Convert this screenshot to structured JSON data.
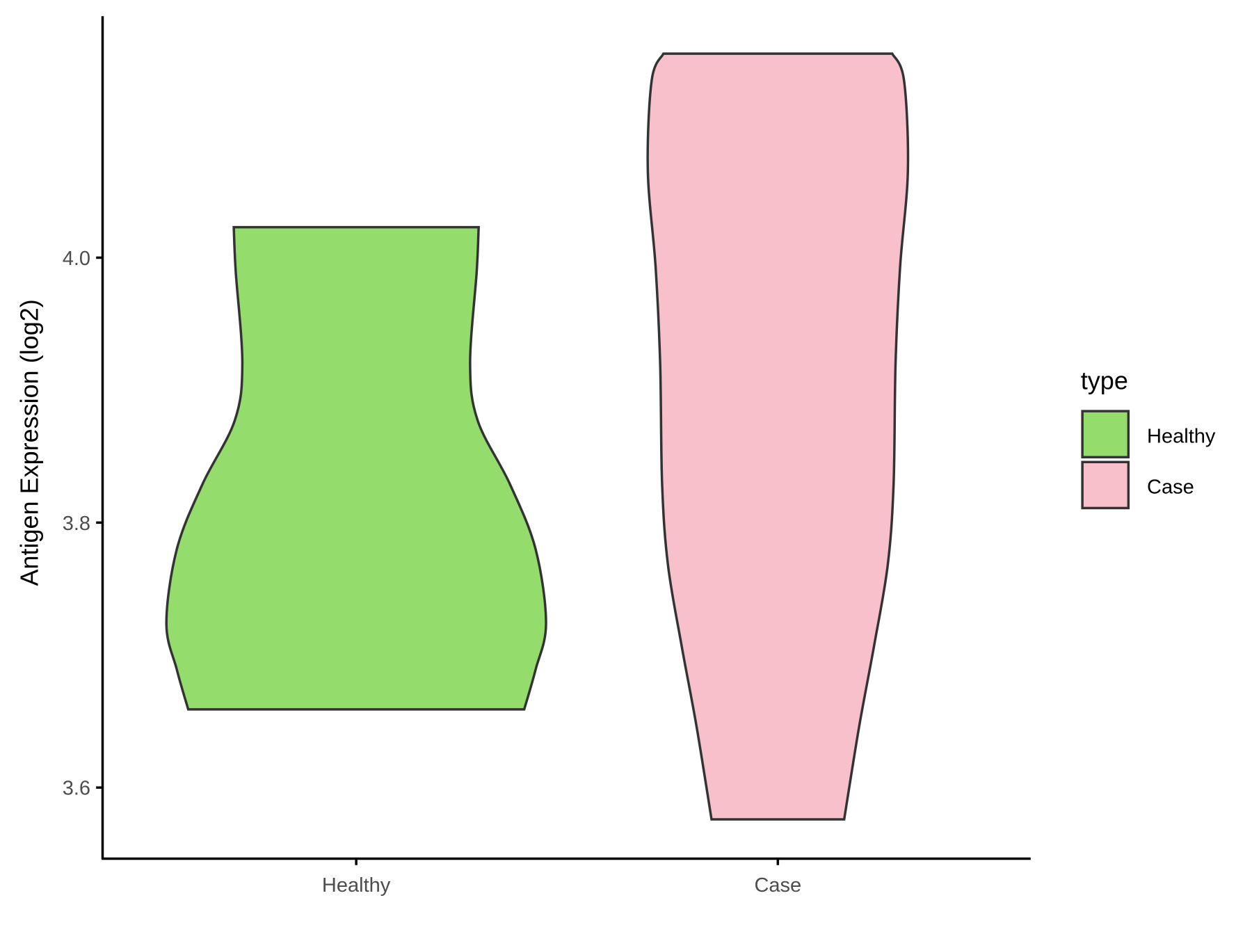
{
  "chart_data": {
    "type": "violin",
    "title": "",
    "xlabel": "",
    "ylabel": "Antigen Expression (log2)",
    "ylim": [
      3.545,
      4.185
    ],
    "yticks": [
      3.6,
      3.8,
      4.0
    ],
    "ytick_labels": [
      "3.6",
      "3.8",
      "4.0"
    ],
    "categories": [
      "Healthy",
      "Case"
    ],
    "grid": false,
    "legend": {
      "title": "type",
      "placement": "right",
      "entries": [
        "Healthy",
        "Case"
      ]
    },
    "series": [
      {
        "name": "Healthy",
        "color": "#94DC6B",
        "min": 3.659,
        "max": 4.023,
        "density_profile": [
          [
            3.659,
            0.885
          ],
          [
            3.689,
            0.945
          ],
          [
            3.724,
            1.0
          ],
          [
            3.78,
            0.945
          ],
          [
            3.829,
            0.81
          ],
          [
            3.877,
            0.64
          ],
          [
            3.92,
            0.6
          ],
          [
            3.99,
            0.635
          ],
          [
            4.023,
            0.645
          ]
        ]
      },
      {
        "name": "Case",
        "color": "#F7C0CB",
        "min": 3.576,
        "max": 4.154,
        "density_profile": [
          [
            3.576,
            0.51
          ],
          [
            3.646,
            0.625
          ],
          [
            3.707,
            0.74
          ],
          [
            3.768,
            0.845
          ],
          [
            3.829,
            0.89
          ],
          [
            3.92,
            0.905
          ],
          [
            3.993,
            0.94
          ],
          [
            4.066,
            1.0
          ],
          [
            4.134,
            0.97
          ],
          [
            4.154,
            0.88
          ]
        ]
      }
    ]
  }
}
